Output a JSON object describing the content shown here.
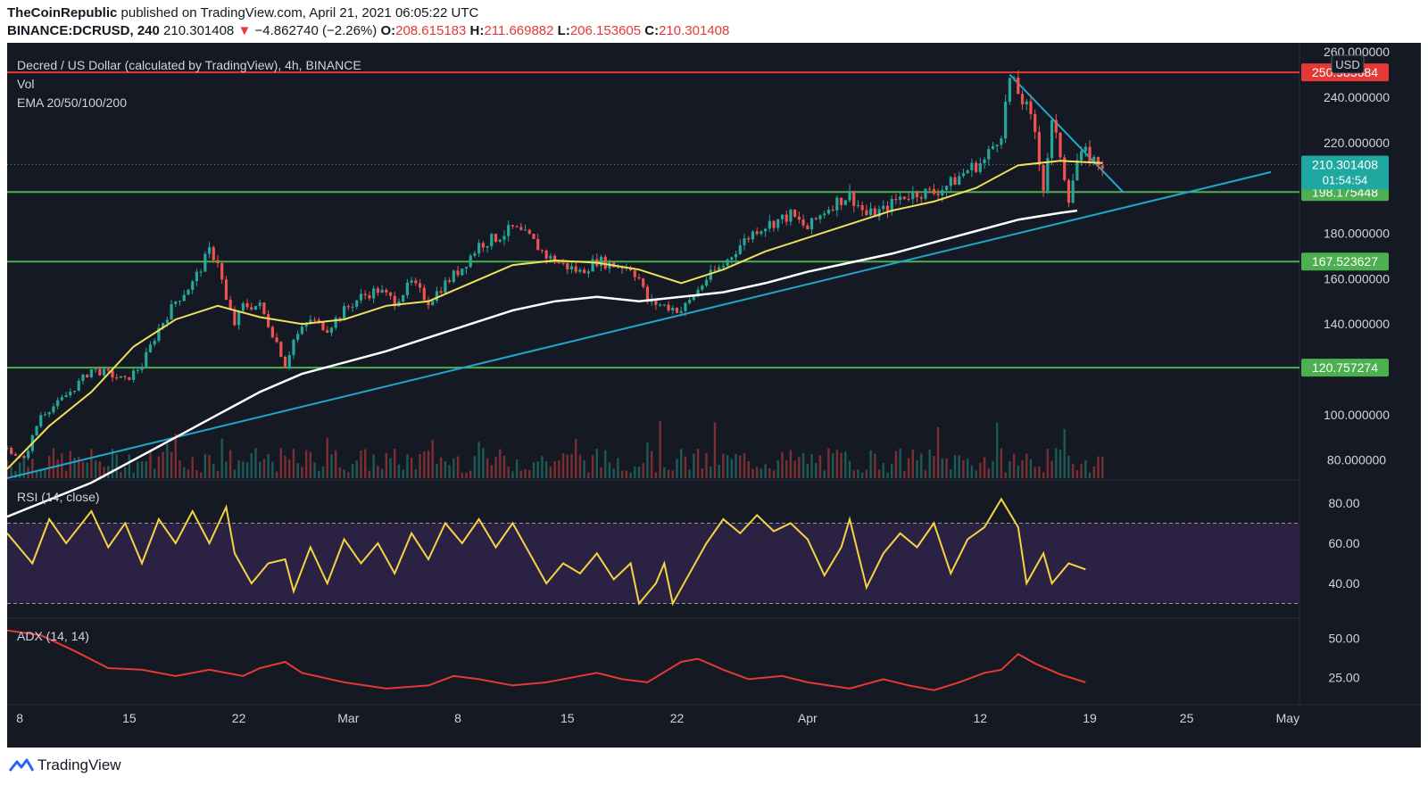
{
  "header": {
    "publisher": "TheCoinRepublic",
    "published_text": "published on TradingView.com, April 21, 2021 06:05:22 UTC",
    "symbol": "BINANCE:DCRUSD, 240",
    "last": "210.301408",
    "change_arrow": "▼",
    "change": "−4.862740 (−2.26%)",
    "o_label": "O:",
    "o_value": "208.615183",
    "h_label": "H:",
    "h_value": "211.669882",
    "l_label": "L:",
    "l_value": "206.153605",
    "c_label": "C:",
    "c_value": "210.301408"
  },
  "legend": {
    "title": "Decred / US Dollar (calculated by TradingView), 4h, BINANCE",
    "vol": "Vol",
    "ema": "EMA 20/50/100/200",
    "rsi": "RSI (14, close)",
    "adx": "ADX (14, 14)"
  },
  "currency_badge": "USD",
  "countdown": "01:54:54",
  "footer": {
    "brand": "TradingView"
  },
  "colors": {
    "background": "#151924",
    "resistance": "#e53935",
    "support": "#4caf50",
    "trendline": "#1fa8c9",
    "ema_yellow": "#f0e05a",
    "ema_white": "#ffffff",
    "rsi_line": "#f5d442",
    "adx_line": "#e53935",
    "up_candle": "#26a69a",
    "down_candle": "#ef5350"
  },
  "chart_data": [
    {
      "type": "candlestick",
      "title": "Decred / US Dollar (calculated by TradingView), 4h, BINANCE",
      "y_unit": "USD",
      "ylim": [
        72,
        264
      ],
      "x_ticks": [
        "8",
        "15",
        "22",
        "Mar",
        "8",
        "15",
        "22",
        "Apr",
        "12",
        "19",
        "25",
        "May"
      ],
      "y_ticks": [
        "260.000000",
        "240.000000",
        "220.000000",
        "180.000000",
        "160.000000",
        "140.000000",
        "100.000000",
        "80.000000"
      ],
      "horizontal_levels": [
        {
          "label": "250.983684",
          "value": 250.983684,
          "color": "#e53935"
        },
        {
          "label": "198.175448",
          "value": 198.175448,
          "color": "#4caf50"
        },
        {
          "label": "167.523627",
          "value": 167.523627,
          "color": "#4caf50"
        },
        {
          "label": "120.757274",
          "value": 120.757274,
          "color": "#4caf50"
        }
      ],
      "last_price": {
        "label": "210.301408",
        "value": 210.301408
      },
      "price_path": [
        [
          0,
          85
        ],
        [
          4,
          80
        ],
        [
          8,
          100
        ],
        [
          12,
          105
        ],
        [
          16,
          112
        ],
        [
          20,
          120
        ],
        [
          24,
          118
        ],
        [
          28,
          115
        ],
        [
          32,
          122
        ],
        [
          36,
          138
        ],
        [
          40,
          150
        ],
        [
          44,
          158
        ],
        [
          48,
          172
        ],
        [
          50,
          168
        ],
        [
          52,
          150
        ],
        [
          54,
          140
        ],
        [
          56,
          148
        ],
        [
          60,
          148
        ],
        [
          64,
          132
        ],
        [
          66,
          122
        ],
        [
          68,
          133
        ],
        [
          72,
          142
        ],
        [
          76,
          138
        ],
        [
          80,
          146
        ],
        [
          84,
          152
        ],
        [
          88,
          155
        ],
        [
          92,
          150
        ],
        [
          96,
          158
        ],
        [
          100,
          150
        ],
        [
          104,
          158
        ],
        [
          108,
          165
        ],
        [
          112,
          175
        ],
        [
          116,
          178
        ],
        [
          120,
          182
        ],
        [
          124,
          178
        ],
        [
          128,
          170
        ],
        [
          132,
          166
        ],
        [
          136,
          163
        ],
        [
          140,
          168
        ],
        [
          144,
          166
        ],
        [
          148,
          165
        ],
        [
          150,
          160
        ],
        [
          152,
          150
        ],
        [
          156,
          148
        ],
        [
          160,
          146
        ],
        [
          162,
          150
        ],
        [
          166,
          160
        ],
        [
          170,
          166
        ],
        [
          174,
          175
        ],
        [
          178,
          182
        ],
        [
          182,
          185
        ],
        [
          186,
          188
        ],
        [
          190,
          182
        ],
        [
          194,
          190
        ],
        [
          196,
          193
        ],
        [
          200,
          197
        ],
        [
          204,
          188
        ],
        [
          208,
          190
        ],
        [
          212,
          196
        ],
        [
          216,
          198
        ],
        [
          220,
          198
        ],
        [
          224,
          202
        ],
        [
          228,
          208
        ],
        [
          232,
          212
        ],
        [
          236,
          225
        ],
        [
          238,
          248
        ],
        [
          240,
          242
        ],
        [
          242,
          235
        ],
        [
          244,
          225
        ],
        [
          246,
          200
        ],
        [
          248,
          228
        ],
        [
          250,
          215
        ],
        [
          252,
          196
        ],
        [
          254,
          212
        ],
        [
          256,
          215
        ],
        [
          258,
          212
        ],
        [
          260,
          210.3
        ]
      ],
      "ema_yellow": [
        [
          0,
          76
        ],
        [
          10,
          95
        ],
        [
          20,
          110
        ],
        [
          30,
          130
        ],
        [
          40,
          142
        ],
        [
          50,
          148
        ],
        [
          60,
          143
        ],
        [
          70,
          140
        ],
        [
          80,
          142
        ],
        [
          90,
          148
        ],
        [
          100,
          150
        ],
        [
          110,
          158
        ],
        [
          120,
          166
        ],
        [
          130,
          168
        ],
        [
          140,
          167
        ],
        [
          150,
          164
        ],
        [
          160,
          158
        ],
        [
          170,
          164
        ],
        [
          180,
          172
        ],
        [
          190,
          178
        ],
        [
          200,
          184
        ],
        [
          210,
          190
        ],
        [
          220,
          194
        ],
        [
          230,
          200
        ],
        [
          240,
          210
        ],
        [
          250,
          212
        ],
        [
          260,
          211
        ]
      ],
      "ema_white": [
        [
          0,
          55
        ],
        [
          20,
          70
        ],
        [
          30,
          80
        ],
        [
          40,
          90
        ],
        [
          50,
          100
        ],
        [
          60,
          110
        ],
        [
          70,
          118
        ],
        [
          80,
          123
        ],
        [
          90,
          128
        ],
        [
          100,
          134
        ],
        [
          110,
          140
        ],
        [
          120,
          146
        ],
        [
          130,
          150
        ],
        [
          140,
          152
        ],
        [
          150,
          150
        ],
        [
          160,
          152
        ],
        [
          170,
          154
        ],
        [
          180,
          158
        ],
        [
          190,
          163
        ],
        [
          200,
          167
        ],
        [
          210,
          171
        ],
        [
          220,
          176
        ],
        [
          230,
          181
        ],
        [
          240,
          186
        ],
        [
          250,
          189
        ],
        [
          254,
          190
        ]
      ],
      "trendlines": [
        {
          "points": [
            [
              0,
              72
            ],
            [
              300,
              207
            ]
          ]
        },
        {
          "points": [
            [
              238,
              250
            ],
            [
              265,
              198
            ]
          ]
        }
      ]
    },
    {
      "type": "line",
      "title": "RSI (14, close)",
      "ylim": [
        24,
        88
      ],
      "y_ticks": [
        "80.00",
        "60.00",
        "40.00"
      ],
      "bands": [
        70,
        30
      ],
      "series": [
        {
          "values": [
            [
              0,
              65
            ],
            [
              6,
              50
            ],
            [
              10,
              72
            ],
            [
              14,
              60
            ],
            [
              20,
              76
            ],
            [
              24,
              58
            ],
            [
              28,
              70
            ],
            [
              32,
              50
            ],
            [
              36,
              72
            ],
            [
              40,
              60
            ],
            [
              44,
              76
            ],
            [
              48,
              60
            ],
            [
              52,
              78
            ],
            [
              54,
              55
            ],
            [
              58,
              40
            ],
            [
              62,
              50
            ],
            [
              66,
              52
            ],
            [
              68,
              36
            ],
            [
              72,
              58
            ],
            [
              76,
              40
            ],
            [
              80,
              62
            ],
            [
              84,
              50
            ],
            [
              88,
              60
            ],
            [
              92,
              45
            ],
            [
              96,
              65
            ],
            [
              100,
              52
            ],
            [
              104,
              70
            ],
            [
              108,
              60
            ],
            [
              112,
              72
            ],
            [
              116,
              58
            ],
            [
              120,
              70
            ],
            [
              124,
              55
            ],
            [
              128,
              40
            ],
            [
              132,
              50
            ],
            [
              136,
              45
            ],
            [
              140,
              55
            ],
            [
              144,
              42
            ],
            [
              148,
              50
            ],
            [
              150,
              30
            ],
            [
              154,
              40
            ],
            [
              156,
              50
            ],
            [
              158,
              30
            ],
            [
              162,
              45
            ],
            [
              166,
              60
            ],
            [
              170,
              72
            ],
            [
              174,
              65
            ],
            [
              178,
              74
            ],
            [
              182,
              66
            ],
            [
              186,
              70
            ],
            [
              190,
              62
            ],
            [
              194,
              44
            ],
            [
              198,
              58
            ],
            [
              200,
              72
            ],
            [
              204,
              38
            ],
            [
              208,
              55
            ],
            [
              212,
              65
            ],
            [
              216,
              58
            ],
            [
              220,
              70
            ],
            [
              224,
              45
            ],
            [
              228,
              62
            ],
            [
              232,
              68
            ],
            [
              236,
              82
            ],
            [
              240,
              68
            ],
            [
              242,
              40
            ],
            [
              246,
              55
            ],
            [
              248,
              40
            ],
            [
              252,
              50
            ],
            [
              256,
              47
            ]
          ]
        }
      ]
    },
    {
      "type": "line",
      "title": "ADX (14, 14)",
      "ylim": [
        10,
        60
      ],
      "y_ticks": [
        "50.00",
        "25.00"
      ],
      "series": [
        {
          "values": [
            [
              0,
              55
            ],
            [
              8,
              52
            ],
            [
              16,
              42
            ],
            [
              24,
              31
            ],
            [
              32,
              30
            ],
            [
              40,
              26
            ],
            [
              48,
              30
            ],
            [
              56,
              26
            ],
            [
              60,
              31
            ],
            [
              66,
              35
            ],
            [
              70,
              28
            ],
            [
              80,
              22
            ],
            [
              90,
              18
            ],
            [
              100,
              20
            ],
            [
              106,
              26
            ],
            [
              112,
              24
            ],
            [
              120,
              20
            ],
            [
              128,
              22
            ],
            [
              136,
              26
            ],
            [
              140,
              28
            ],
            [
              146,
              24
            ],
            [
              152,
              22
            ],
            [
              160,
              35
            ],
            [
              164,
              37
            ],
            [
              170,
              30
            ],
            [
              176,
              24
            ],
            [
              184,
              26
            ],
            [
              190,
              22
            ],
            [
              200,
              18
            ],
            [
              208,
              24
            ],
            [
              214,
              20
            ],
            [
              220,
              17
            ],
            [
              226,
              22
            ],
            [
              232,
              28
            ],
            [
              236,
              30
            ],
            [
              240,
              40
            ],
            [
              244,
              34
            ],
            [
              250,
              27
            ],
            [
              256,
              22
            ]
          ]
        }
      ]
    }
  ]
}
